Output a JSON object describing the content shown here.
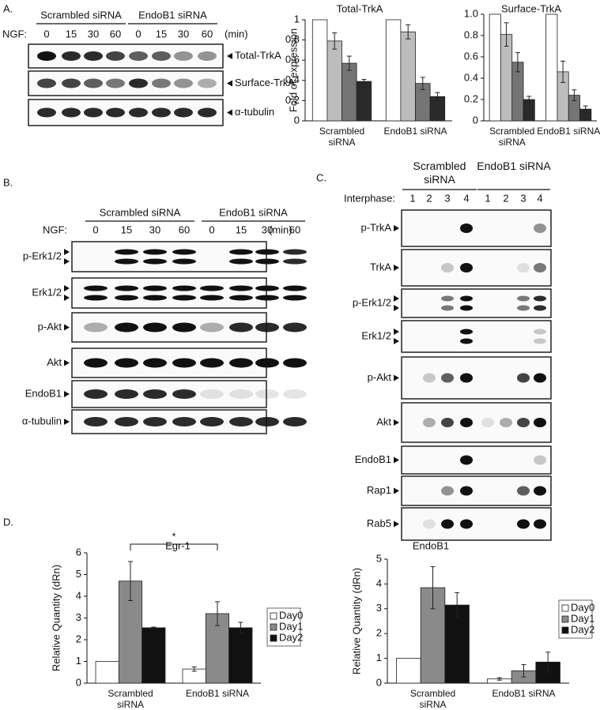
{
  "panel_labels": [
    "A.",
    "B.",
    "C.",
    "D."
  ],
  "panel_a": {
    "groups": [
      "Scrambled siRNA",
      "EndoB1 siRNA"
    ],
    "row_label": "NGF:",
    "lanes": [
      0,
      15,
      30,
      60,
      0,
      15,
      30,
      60
    ],
    "unit": "(min)",
    "blots": [
      "Total-TrkA",
      "Surface-TrkA",
      "α-tubulin"
    ]
  },
  "panel_b": {
    "groups": [
      "Scrambled siRNA",
      "EndoB1 siRNA"
    ],
    "row_label": "NGF:",
    "lanes": [
      0,
      15,
      30,
      60,
      0,
      15,
      30,
      60
    ],
    "unit": "(min)",
    "blots": [
      "p-Erk1/2",
      "Erk1/2",
      "p-Akt",
      "Akt",
      "EndoB1",
      "α-tubulin"
    ]
  },
  "panel_c": {
    "groups": [
      "Scrambled siRNA",
      "EndoB1 siRNA"
    ],
    "row_label": "Interphase:",
    "lanes": [
      1,
      2,
      3,
      4,
      1,
      2,
      3,
      4
    ],
    "blots": [
      "p-TrkA",
      "TrkA",
      "p-Erk1/2",
      "Erk1/2",
      "p-Akt",
      "Akt",
      "EndoB1",
      "Rap1",
      "Rab5"
    ]
  },
  "chart_data": [
    {
      "type": "bar",
      "title": "Total-TrkA",
      "y_label": "Fold of expression",
      "categories": [
        "Scrambled siRNA",
        "EndoB1 siRNA"
      ],
      "series": [
        {
          "color": "#ffffff",
          "values": [
            1,
            1
          ],
          "errors": [
            0,
            0
          ]
        },
        {
          "color": "#bdbdbd",
          "values": [
            0.79,
            0.88
          ],
          "errors": [
            0.08,
            0.07
          ]
        },
        {
          "color": "#757575",
          "values": [
            0.57,
            0.37
          ],
          "errors": [
            0.07,
            0.06
          ]
        },
        {
          "color": "#2a2a2a",
          "values": [
            0.39,
            0.24
          ],
          "errors": [
            0.02,
            0.04
          ]
        }
      ],
      "ylim": [
        0,
        1
      ],
      "yticks": [
        0,
        0.2,
        0.4,
        0.6,
        0.8,
        1
      ]
    },
    {
      "type": "bar",
      "title": "Surface-TrkA",
      "categories": [
        "Scrambled siRNA",
        "EndoB1 siRNA"
      ],
      "series": [
        {
          "color": "#ffffff",
          "values": [
            1,
            1
          ],
          "errors": [
            0,
            0
          ]
        },
        {
          "color": "#bdbdbd",
          "values": [
            0.81,
            0.46
          ],
          "errors": [
            0.11,
            0.1
          ]
        },
        {
          "color": "#757575",
          "values": [
            0.55,
            0.24
          ],
          "errors": [
            0.09,
            0.05
          ]
        },
        {
          "color": "#2a2a2a",
          "values": [
            0.2,
            0.11
          ],
          "errors": [
            0.03,
            0.03
          ]
        }
      ],
      "ylim": [
        0,
        1
      ],
      "yticks": [
        0,
        0.2,
        0.4,
        0.6,
        0.8,
        {
          "value": 1,
          "label": "1.0"
        }
      ]
    },
    {
      "type": "bar",
      "title": "Egr-1",
      "y_label": "Relative Quantity (dRn)",
      "annotation": "*",
      "categories": [
        "Scrambled siRNA",
        "EndoB1 siRNA"
      ],
      "series": [
        {
          "name": "Day0",
          "color": "#ffffff",
          "values": [
            1,
            0.65
          ],
          "errors": [
            0,
            0.1
          ]
        },
        {
          "name": "Day1",
          "color": "#8a8a8a",
          "values": [
            4.7,
            3.2
          ],
          "errors": [
            0.9,
            0.55
          ]
        },
        {
          "name": "Day2",
          "color": "#111111",
          "values": [
            2.55,
            2.55
          ],
          "errors": [
            0.03,
            0.25
          ]
        }
      ],
      "ylim": [
        0,
        6
      ],
      "yticks": [
        0,
        1,
        2,
        3,
        4,
        5,
        6
      ]
    },
    {
      "type": "bar",
      "title": "EndoB1",
      "y_label": "Relative Quantity (dRn)",
      "categories": [
        "Scrambled siRNA",
        "EndoB1 siRNA"
      ],
      "series": [
        {
          "name": "Day0",
          "color": "#ffffff",
          "values": [
            1,
            0.17
          ],
          "errors": [
            0,
            0.05
          ]
        },
        {
          "name": "Day1",
          "color": "#8a8a8a",
          "values": [
            3.85,
            0.5
          ],
          "errors": [
            0.85,
            0.25
          ]
        },
        {
          "name": "Day2",
          "color": "#111111",
          "values": [
            3.15,
            0.85
          ],
          "errors": [
            0.5,
            0.4
          ]
        }
      ],
      "ylim": [
        0,
        5
      ],
      "yticks": [
        0,
        1,
        2,
        3,
        4,
        5
      ]
    }
  ]
}
